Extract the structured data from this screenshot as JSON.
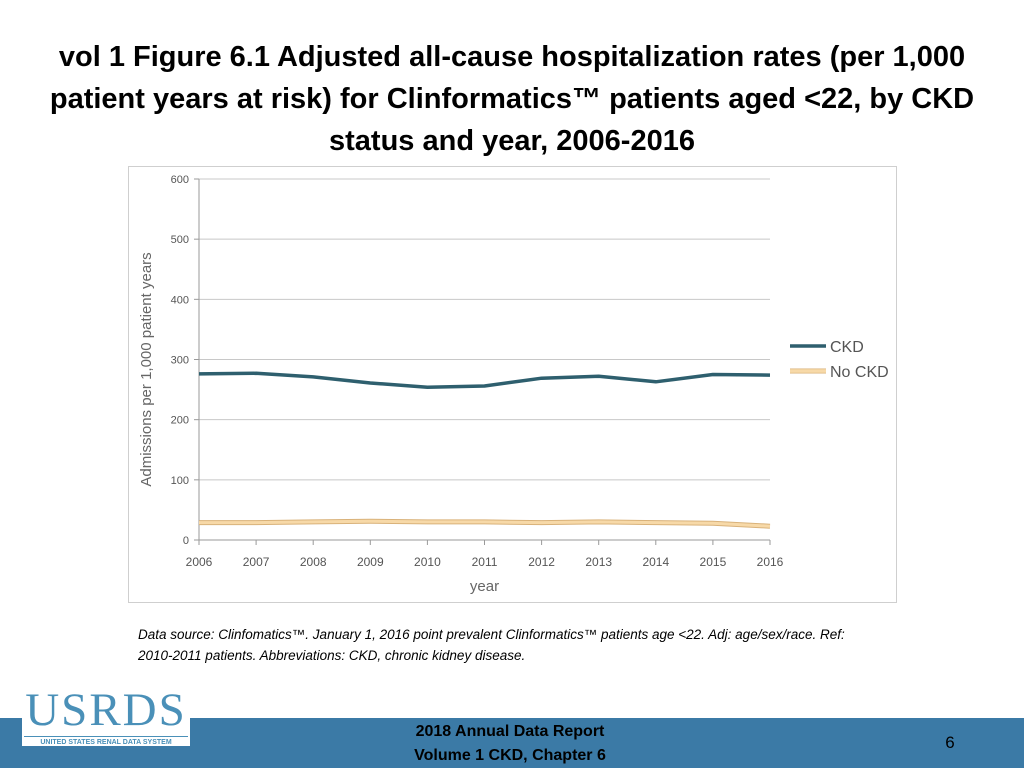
{
  "slide": {
    "title": "vol 1 Figure 6.1  Adjusted all-cause hospitalization rates (per 1,000 patient years at risk) for Clinformatics™ patients aged <22, by CKD status and year, 2006-2016",
    "note": "Data source: Clinfomatics™. January 1, 2016 point prevalent Clinformatics™ patients age <22. Adj: age/sex/race. Ref: 2010-2011 patients. Abbreviations: CKD, chronic kidney disease.",
    "footer_line1": "2018 Annual Data Report",
    "footer_line2": "Volume 1 CKD, Chapter 6",
    "page_number": "6",
    "logo_text": "USRDS",
    "logo_subtext": "UNITED STATES RENAL DATA SYSTEM",
    "footer_color": "#3b7aa6"
  },
  "chart_data": {
    "type": "line",
    "title": "",
    "xlabel": "year",
    "ylabel": "Admissions per 1,000 patient years",
    "x": [
      "2006",
      "2007",
      "2008",
      "2009",
      "2010",
      "2011",
      "2012",
      "2013",
      "2014",
      "2015",
      "2016"
    ],
    "ylim": [
      0,
      600
    ],
    "yticks": [
      0,
      100,
      200,
      300,
      400,
      500,
      600
    ],
    "grid": true,
    "legend_position": "right",
    "series": [
      {
        "name": "CKD",
        "color": "#2e5f6e",
        "values": [
          276,
          277,
          271,
          261,
          254,
          256,
          269,
          272,
          263,
          275,
          274
        ]
      },
      {
        "name": "No CKD",
        "color": "#f7d9a8",
        "values": [
          29,
          29,
          30,
          31,
          30,
          30,
          29,
          30,
          29,
          28,
          23
        ]
      }
    ]
  }
}
